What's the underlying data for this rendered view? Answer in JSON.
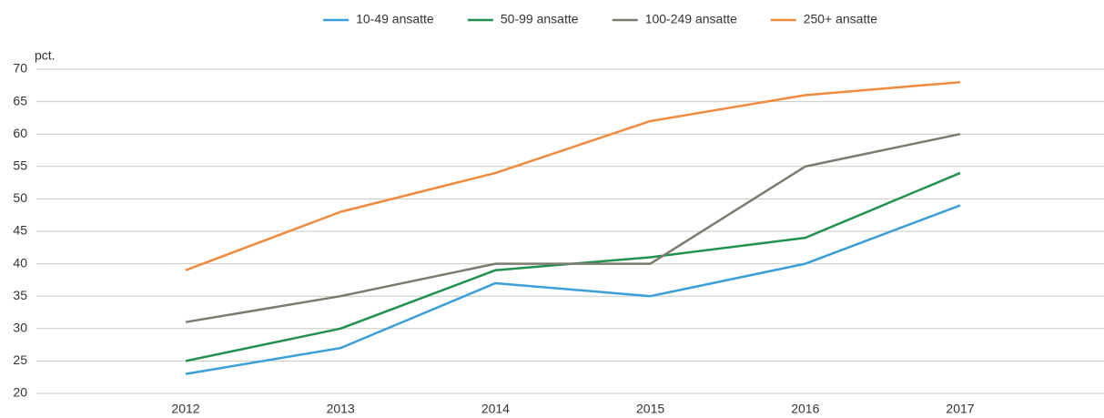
{
  "chart_data": {
    "type": "line",
    "y_label": "pct.",
    "categories": [
      "2012",
      "2013",
      "2014",
      "2015",
      "2016",
      "2017"
    ],
    "series": [
      {
        "name": "10-49 ansatte",
        "color": "#3a9fd8",
        "values": [
          23,
          27,
          37,
          35,
          40,
          49
        ]
      },
      {
        "name": "50-99 ansatte",
        "color": "#22904e",
        "values": [
          25,
          30,
          39,
          41,
          44,
          54
        ]
      },
      {
        "name": "100-249 ansatte",
        "color": "#7b7b70",
        "values": [
          31,
          35,
          40,
          40,
          55,
          60
        ]
      },
      {
        "name": "250+ ansatte",
        "color": "#f08a3c",
        "values": [
          39,
          48,
          54,
          62,
          66,
          68
        ]
      }
    ],
    "ylim": [
      20,
      70
    ],
    "yticks": [
      20,
      25,
      30,
      35,
      40,
      45,
      50,
      55,
      60,
      65,
      70
    ],
    "grid": true,
    "legend": "top"
  }
}
